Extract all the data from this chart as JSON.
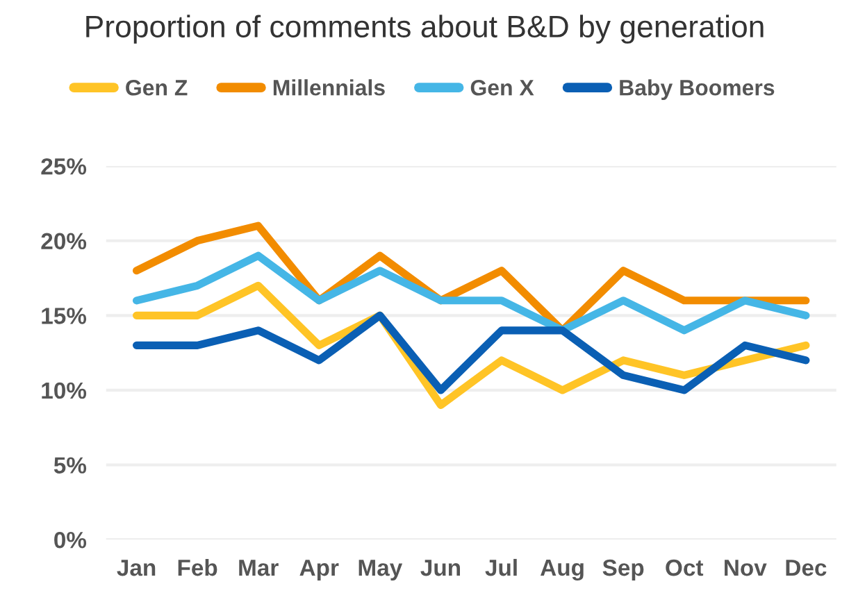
{
  "chart_data": {
    "type": "line",
    "title": "Proportion of comments about B&D by generation",
    "categories": [
      "Jan",
      "Feb",
      "Mar",
      "Apr",
      "May",
      "Jun",
      "Jul",
      "Aug",
      "Sep",
      "Oct",
      "Nov",
      "Dec"
    ],
    "series": [
      {
        "name": "Gen Z",
        "color": "#ffc426",
        "values": [
          15,
          15,
          17,
          13,
          15,
          9,
          12,
          10,
          12,
          11,
          12,
          13
        ]
      },
      {
        "name": "Millennials",
        "color": "#f28c00",
        "values": [
          18,
          20,
          21,
          16,
          19,
          16,
          18,
          14,
          18,
          16,
          16,
          16
        ]
      },
      {
        "name": "Gen X",
        "color": "#45b6e6",
        "values": [
          16,
          17,
          19,
          16,
          18,
          16,
          16,
          14,
          16,
          14,
          16,
          15
        ]
      },
      {
        "name": "Baby Boomers",
        "color": "#0a5fb4",
        "values": [
          13,
          13,
          14,
          12,
          15,
          10,
          14,
          14,
          11,
          10,
          13,
          12
        ]
      }
    ],
    "ylim": [
      0,
      25
    ],
    "yticks": [
      {
        "value": 0,
        "label": "0%"
      },
      {
        "value": 5,
        "label": "5%"
      },
      {
        "value": 10,
        "label": "10%"
      },
      {
        "value": 15,
        "label": "15%"
      },
      {
        "value": 20,
        "label": "20%"
      },
      {
        "value": 25,
        "label": "25%"
      }
    ],
    "grid": "y",
    "legend": "top",
    "marker": "none",
    "line_style": "solid"
  }
}
